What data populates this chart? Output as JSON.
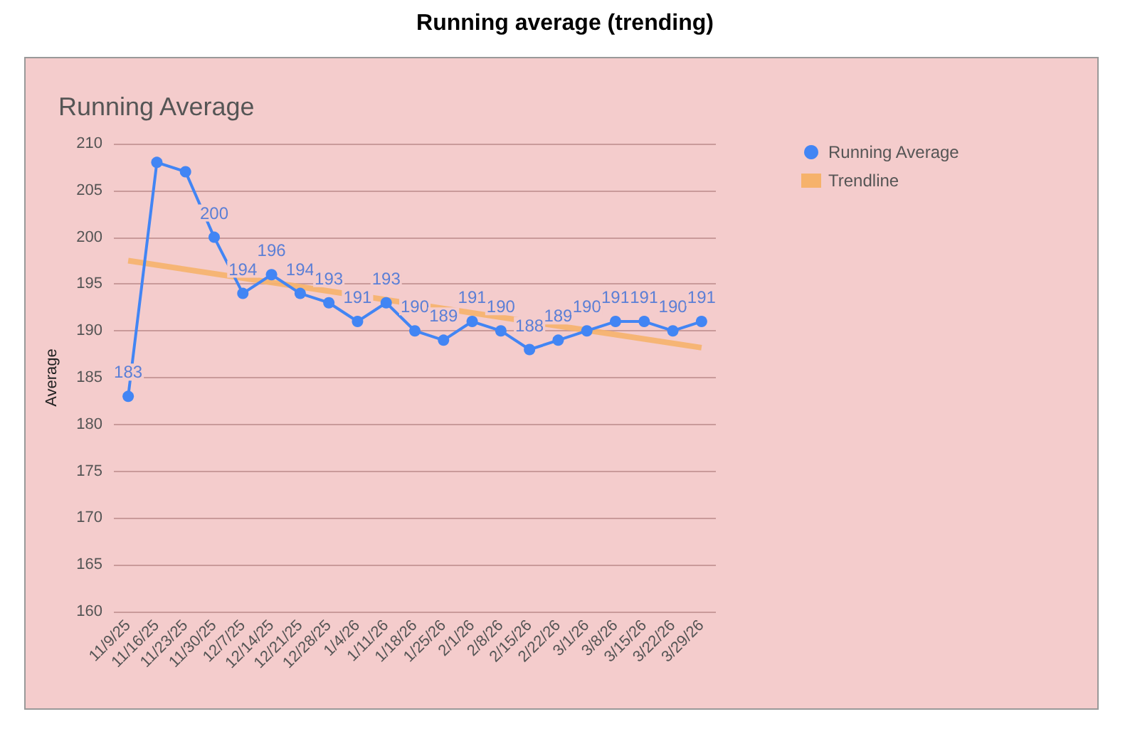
{
  "chart_data": {
    "type": "line",
    "title": "Running average (trending)",
    "subtitle": "Running Average",
    "ylabel": "Average",
    "categories": [
      "11/9/25",
      "11/16/25",
      "11/23/25",
      "11/30/25",
      "12/7/25",
      "12/14/25",
      "12/21/25",
      "12/28/25",
      "1/4/26",
      "1/11/26",
      "1/18/26",
      "1/25/26",
      "2/1/26",
      "2/8/26",
      "2/15/26",
      "2/22/26",
      "3/1/26",
      "3/8/26",
      "3/15/26",
      "3/22/26",
      "3/29/26"
    ],
    "series": [
      {
        "name": "Running Average",
        "color": "#4285f4",
        "values": [
          183,
          208,
          207,
          200,
          194,
          196,
          194,
          193,
          191,
          193,
          190,
          189,
          191,
          190,
          188,
          189,
          190,
          191,
          191,
          190,
          191
        ],
        "value_labels": [
          "183",
          null,
          null,
          "200",
          "194",
          "196",
          "194",
          "193",
          "191",
          "193",
          "190",
          "189",
          "191",
          "190",
          "188",
          "189",
          "190",
          "191",
          "191",
          "190",
          "191"
        ],
        "marker": "circle"
      },
      {
        "name": "Trendline",
        "color": "#f6b26b",
        "x": [
          "11/9/25",
          "3/29/26"
        ],
        "values": [
          197.5,
          188.2
        ],
        "marker": "none"
      }
    ],
    "ylim": [
      160,
      210
    ],
    "yticks": [
      160,
      165,
      170,
      175,
      180,
      185,
      190,
      195,
      200,
      205,
      210
    ],
    "grid": "y",
    "legend": "top right"
  }
}
